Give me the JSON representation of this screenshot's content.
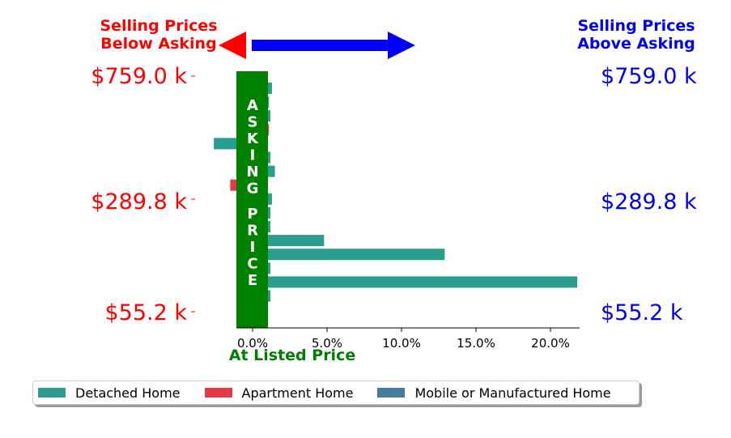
{
  "chart_data": {
    "type": "bar",
    "orientation": "horizontal",
    "header_left": [
      "Selling Prices",
      "Below Asking"
    ],
    "header_right": [
      "Selling Prices",
      "Above Asking"
    ],
    "asking_price_label": "ASKING PRICE",
    "xlabel": "At Listed Price",
    "x_ticks": [
      0,
      5,
      10,
      15,
      20
    ],
    "x_tick_labels": [
      "0.0%",
      "5.0%",
      "10.0%",
      "15.0%",
      "20.0%"
    ],
    "xlim": [
      -2.5,
      22
    ],
    "price_labels_left": [
      "$759.0 k",
      "$289.8 k",
      "$55.2 k"
    ],
    "price_labels_right": [
      "$759.0 k",
      "$289.8 k",
      "$55.2 k"
    ],
    "colors": {
      "below": "#ff0000",
      "above": "#0000ee",
      "asking": "#008000",
      "detached": "#2a9d8f",
      "apartment": "#e63946",
      "mobile": "#457b9d"
    },
    "series": [
      {
        "name": "Detached Home",
        "color": "#2a9d8f"
      },
      {
        "name": "Apartment Home",
        "color": "#e63946"
      },
      {
        "name": "Mobile or Manufactured Home",
        "color": "#457b9d"
      }
    ],
    "bars": [
      {
        "series": 0,
        "value": 1.3
      },
      {
        "series": 0,
        "value": 1.1
      },
      {
        "series": 0,
        "value": 1.2
      },
      {
        "series": 1,
        "value": 1.1
      },
      {
        "series": 0,
        "value": -2.6
      },
      {
        "series": 0,
        "value": 1.2
      },
      {
        "series": 0,
        "value": 1.5
      },
      {
        "series": 1,
        "value": -1.5
      },
      {
        "series": 0,
        "value": 1.3
      },
      {
        "series": 0,
        "value": 1.2
      },
      {
        "series": 0,
        "value": 1.2
      },
      {
        "series": 0,
        "value": 4.8
      },
      {
        "series": 0,
        "value": 12.9
      },
      {
        "series": 0,
        "value": 1.2
      },
      {
        "series": 0,
        "value": 21.8
      },
      {
        "series": 0,
        "value": 1.2
      }
    ]
  }
}
